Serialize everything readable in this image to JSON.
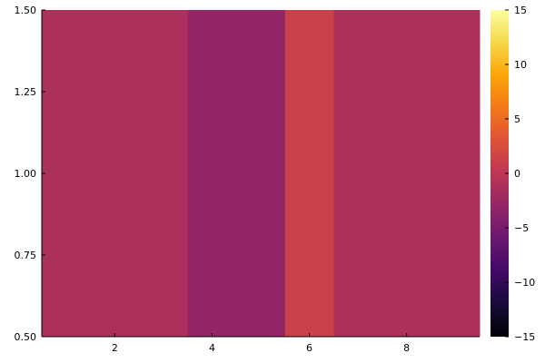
{
  "chart_data": {
    "type": "heatmap",
    "title": "",
    "xlabel": "",
    "ylabel": "",
    "colormap": "inferno",
    "x": [
      1,
      2,
      3,
      4,
      5,
      6,
      7,
      8,
      9
    ],
    "y": [
      1
    ],
    "z": [
      [
        -1.2,
        -1.2,
        -1.2,
        -3.0,
        -3.0,
        1.2,
        -1.2,
        -1.2,
        -1.2
      ]
    ],
    "xlim": [
      0.5,
      9.5
    ],
    "ylim": [
      0.5,
      1.5
    ],
    "clim": [
      -15,
      15
    ],
    "xticks": [
      2,
      4,
      6,
      8
    ],
    "xtick_labels": [
      "2",
      "4",
      "6",
      "8"
    ],
    "yticks": [
      0.5,
      0.75,
      1.0,
      1.25,
      1.5
    ],
    "ytick_labels": [
      "0.50",
      "0.75",
      "1.00",
      "1.25",
      "1.50"
    ],
    "colorbar": {
      "ticks": [
        -15,
        -10,
        -5,
        0,
        5,
        10,
        15
      ],
      "tick_labels": [
        "−15",
        "−10",
        "−5",
        "0",
        "5",
        "10",
        "15"
      ]
    },
    "grid": false
  }
}
